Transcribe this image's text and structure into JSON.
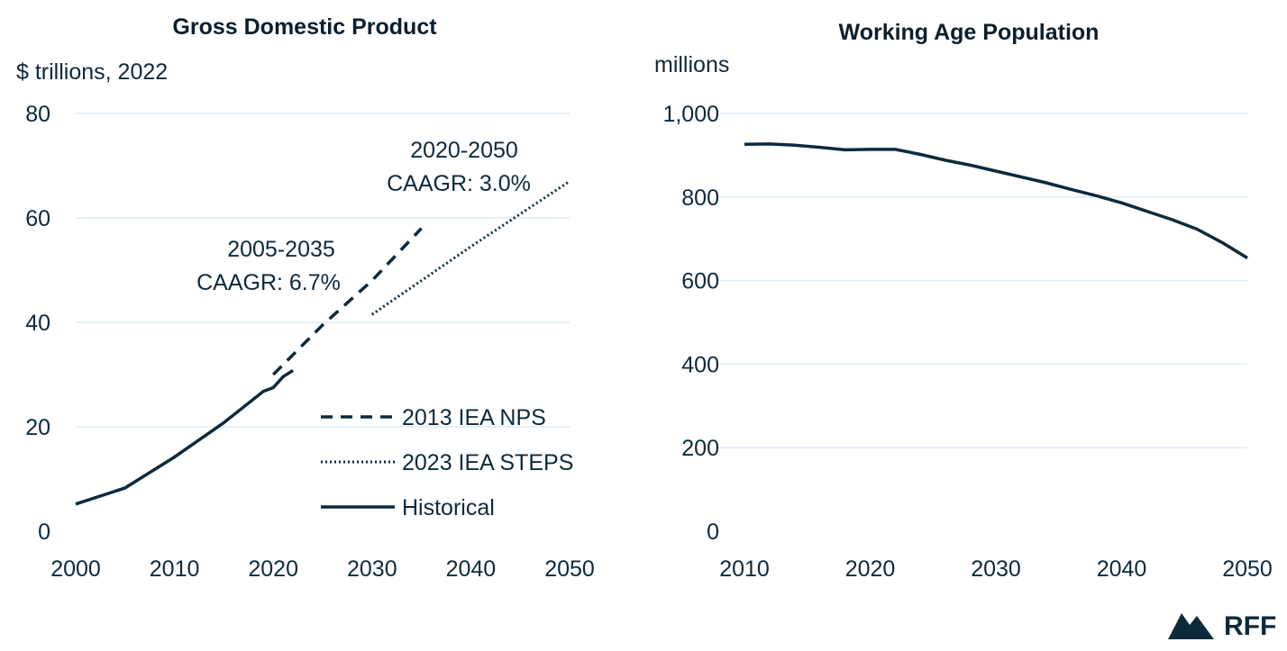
{
  "chart_data": [
    {
      "type": "line",
      "title": "Gross Domestic Product",
      "ylabel": "$ trillions, 2022",
      "xlim": [
        2000,
        2050
      ],
      "ylim": [
        0,
        80
      ],
      "x_ticks": [
        "2000",
        "2010",
        "2020",
        "2030",
        "2040",
        "2050"
      ],
      "y_ticks": [
        "0",
        "20",
        "40",
        "60",
        "80"
      ],
      "grid": true,
      "legend_position": "bottom-right",
      "series": [
        {
          "name": "2013 IEA NPS",
          "style": "dashed",
          "x": [
            2020,
            2025,
            2030,
            2035
          ],
          "y": [
            30,
            39.5,
            48,
            58
          ]
        },
        {
          "name": "2023 IEA STEPS",
          "style": "dotted",
          "x": [
            2030,
            2040,
            2050
          ],
          "y": [
            41.5,
            54.5,
            67
          ]
        },
        {
          "name": "Historical",
          "style": "solid",
          "x": [
            2000,
            2005,
            2010,
            2015,
            2019,
            2020,
            2021,
            2022
          ],
          "y": [
            5.2,
            8.3,
            14.2,
            20.8,
            26.8,
            27.5,
            29.6,
            30.8
          ]
        }
      ],
      "annotations": [
        {
          "lines": [
            "2005-2035",
            "CAAGR: 6.7%"
          ]
        },
        {
          "lines": [
            "2020-2050",
            "CAAGR: 3.0%"
          ]
        }
      ]
    },
    {
      "type": "line",
      "title": "Working Age Population",
      "ylabel": "millions",
      "xlim": [
        2010,
        2050
      ],
      "ylim": [
        0,
        1000
      ],
      "x_ticks": [
        "2010",
        "2020",
        "2030",
        "2040",
        "2050"
      ],
      "y_ticks": [
        "0",
        "200",
        "400",
        "600",
        "800",
        "1,000"
      ],
      "grid": true,
      "series": [
        {
          "x": [
            2010,
            2012,
            2014,
            2016,
            2018,
            2020,
            2022,
            2024,
            2026,
            2028,
            2030,
            2032,
            2034,
            2036,
            2038,
            2040,
            2042,
            2044,
            2046,
            2048,
            2050
          ],
          "y": [
            926,
            927,
            924,
            919,
            913,
            914,
            914,
            902,
            888,
            876,
            862,
            848,
            834,
            818,
            803,
            786,
            766,
            746,
            723,
            691,
            654
          ]
        }
      ]
    }
  ],
  "colors": {
    "ink": "#0d2a3d",
    "grid": "#dcebf3"
  },
  "logo": {
    "text": "RFF",
    "icon": "mountain-logo-icon"
  }
}
